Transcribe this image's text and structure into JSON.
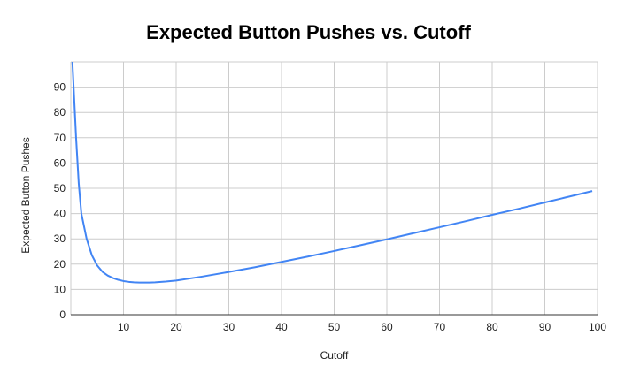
{
  "chart_data": {
    "type": "line",
    "title": "Expected Button Pushes vs. Cutoff",
    "xlabel": "Cutoff",
    "ylabel": "Expected Button Pushes",
    "xlim": [
      0,
      100
    ],
    "ylim": [
      0,
      100
    ],
    "x_ticks": [
      10,
      20,
      30,
      40,
      50,
      60,
      70,
      80,
      90,
      100
    ],
    "y_ticks": [
      0,
      10,
      20,
      30,
      40,
      50,
      60,
      70,
      80,
      90
    ],
    "grid": true,
    "legend": "none",
    "series": [
      {
        "color": "#4285f4",
        "x": [
          0.3,
          1,
          1.5,
          2,
          3,
          4,
          5,
          6,
          7,
          8,
          9,
          10,
          11,
          12,
          13,
          14,
          15,
          16,
          18,
          20,
          25,
          30,
          35,
          40,
          45,
          50,
          55,
          60,
          65,
          70,
          75,
          80,
          85,
          90,
          95,
          99
        ],
        "y": [
          100,
          70,
          52,
          40,
          30,
          23.5,
          19.5,
          17,
          15.5,
          14.5,
          13.8,
          13.3,
          13.0,
          12.8,
          12.7,
          12.7,
          12.7,
          12.8,
          13.1,
          13.5,
          15.1,
          16.9,
          18.8,
          20.9,
          23.0,
          25.2,
          27.5,
          29.8,
          32.2,
          34.6,
          37.0,
          39.5,
          41.9,
          44.4,
          46.9,
          48.9
        ]
      }
    ]
  }
}
